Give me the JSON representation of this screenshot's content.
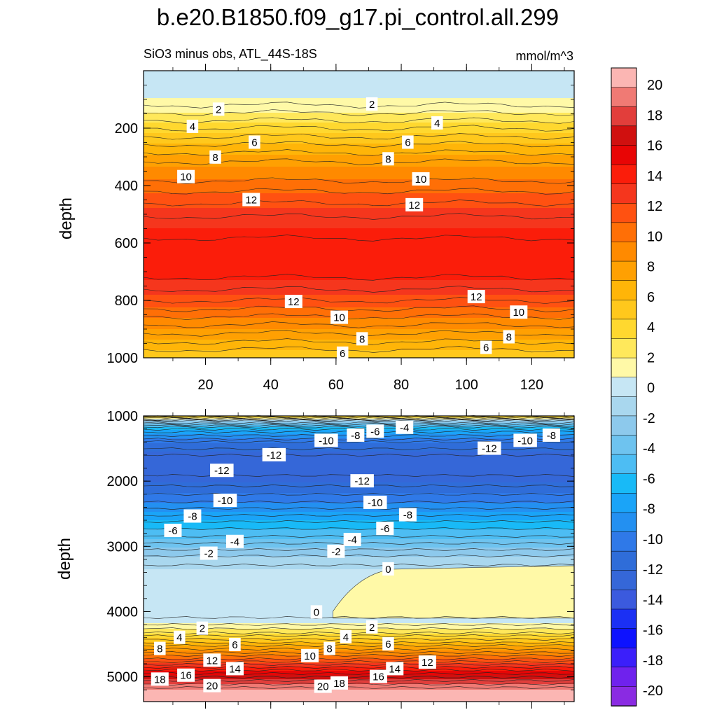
{
  "chart_data": {
    "type": "contour",
    "title": "b.e20.B1850.f09_g17.pi_control.all.299",
    "subtitle": "SiO3 minus obs, ATL_44S-18S",
    "units": "mmol/m^3",
    "colorbar": {
      "levels": [
        20,
        18,
        16,
        14,
        12,
        10,
        8,
        6,
        4,
        2,
        0,
        -2,
        -4,
        -6,
        -8,
        -10,
        -12,
        -14,
        -16,
        -18,
        -20
      ],
      "colors": [
        "#fbb6b3",
        "#f07a74",
        "#e23e3b",
        "#d0100f",
        "#e80505",
        "#fb1d0a",
        "#f5361d",
        "#ff5111",
        "#ff6f06",
        "#ff8a00",
        "#ffa002",
        "#ffb508",
        "#ffc81c",
        "#ffd82f",
        "#ffe85b",
        "#fff9a7",
        "#c6e6f4",
        "#a9d7ee",
        "#8dc9ec",
        "#6ec3ef",
        "#4dbdf3",
        "#18baf7",
        "#1aa4f8",
        "#2390f1",
        "#2f79e8",
        "#2f6dd9",
        "#3567d8",
        "#3b5ade",
        "#1b30f4",
        "#0d12ff",
        "#3b1ffa",
        "#6f22ed",
        "#8a2be2"
      ]
    },
    "panels": [
      {
        "name": "upper",
        "ylabel": "depth",
        "xlim": [
          1,
          133
        ],
        "ylim": [
          1000,
          0
        ],
        "xticks": [
          20,
          40,
          60,
          80,
          100,
          120
        ],
        "yticks": [
          200,
          400,
          600,
          800,
          1000
        ],
        "contour_labels": [
          {
            "text": "2",
            "x": 24,
            "depth": 135
          },
          {
            "text": "2",
            "x": 71,
            "depth": 117
          },
          {
            "text": "4",
            "x": 16,
            "depth": 195
          },
          {
            "text": "4",
            "x": 91,
            "depth": 183
          },
          {
            "text": "6",
            "x": 35,
            "depth": 250
          },
          {
            "text": "6",
            "x": 82,
            "depth": 250
          },
          {
            "text": "8",
            "x": 23,
            "depth": 302
          },
          {
            "text": "8",
            "x": 76,
            "depth": 308
          },
          {
            "text": "10",
            "x": 14,
            "depth": 370
          },
          {
            "text": "10",
            "x": 86,
            "depth": 378
          },
          {
            "text": "12",
            "x": 34,
            "depth": 450
          },
          {
            "text": "12",
            "x": 84,
            "depth": 468
          },
          {
            "text": "12",
            "x": 47,
            "depth": 805
          },
          {
            "text": "12",
            "x": 103,
            "depth": 788
          },
          {
            "text": "10",
            "x": 61,
            "depth": 860
          },
          {
            "text": "10",
            "x": 116,
            "depth": 842
          },
          {
            "text": "8",
            "x": 68,
            "depth": 935
          },
          {
            "text": "8",
            "x": 113,
            "depth": 928
          },
          {
            "text": "6",
            "x": 62,
            "depth": 985
          },
          {
            "text": "6",
            "x": 106,
            "depth": 965
          }
        ]
      },
      {
        "name": "lower",
        "ylabel": "depth",
        "xlim": [
          1,
          133
        ],
        "ylim": [
          5380,
          1000
        ],
        "yticks": [
          1000,
          2000,
          3000,
          4000,
          5000
        ],
        "contour_labels": [
          {
            "text": "-4",
            "x": 81,
            "depth": 1180
          },
          {
            "text": "-6",
            "x": 72,
            "depth": 1240
          },
          {
            "text": "-8",
            "x": 66,
            "depth": 1300
          },
          {
            "text": "-10",
            "x": 57,
            "depth": 1380
          },
          {
            "text": "-12",
            "x": 41,
            "depth": 1600
          },
          {
            "text": "-12",
            "x": 25,
            "depth": 1840
          },
          {
            "text": "-12",
            "x": 68,
            "depth": 2000
          },
          {
            "text": "-12",
            "x": 107,
            "depth": 1500
          },
          {
            "text": "-10",
            "x": 118,
            "depth": 1380
          },
          {
            "text": "-8",
            "x": 126,
            "depth": 1300
          },
          {
            "text": "-10",
            "x": 26,
            "depth": 2300
          },
          {
            "text": "-10",
            "x": 72,
            "depth": 2330
          },
          {
            "text": "-8",
            "x": 16,
            "depth": 2540
          },
          {
            "text": "-8",
            "x": 82,
            "depth": 2520
          },
          {
            "text": "-6",
            "x": 10,
            "depth": 2760
          },
          {
            "text": "-6",
            "x": 75,
            "depth": 2730
          },
          {
            "text": "-4",
            "x": 29,
            "depth": 2930
          },
          {
            "text": "-4",
            "x": 65,
            "depth": 2900
          },
          {
            "text": "-2",
            "x": 21,
            "depth": 3110
          },
          {
            "text": "-2",
            "x": 60,
            "depth": 3080
          },
          {
            "text": "0",
            "x": 76,
            "depth": 3350
          },
          {
            "text": "0",
            "x": 54,
            "depth": 4010
          },
          {
            "text": "2",
            "x": 19,
            "depth": 4260
          },
          {
            "text": "2",
            "x": 71,
            "depth": 4240
          },
          {
            "text": "4",
            "x": 12,
            "depth": 4400
          },
          {
            "text": "4",
            "x": 63,
            "depth": 4390
          },
          {
            "text": "6",
            "x": 29,
            "depth": 4510
          },
          {
            "text": "6",
            "x": 76,
            "depth": 4500
          },
          {
            "text": "8",
            "x": 6,
            "depth": 4570
          },
          {
            "text": "8",
            "x": 58,
            "depth": 4570
          },
          {
            "text": "10",
            "x": 52,
            "depth": 4680
          },
          {
            "text": "12",
            "x": 22,
            "depth": 4750
          },
          {
            "text": "12",
            "x": 88,
            "depth": 4780
          },
          {
            "text": "14",
            "x": 29,
            "depth": 4880
          },
          {
            "text": "14",
            "x": 78,
            "depth": 4880
          },
          {
            "text": "16",
            "x": 14,
            "depth": 4980
          },
          {
            "text": "16",
            "x": 73,
            "depth": 5000
          },
          {
            "text": "18",
            "x": 6,
            "depth": 5040
          },
          {
            "text": "18",
            "x": 61,
            "depth": 5100
          },
          {
            "text": "20",
            "x": 22,
            "depth": 5140
          },
          {
            "text": "20",
            "x": 56,
            "depth": 5150
          }
        ]
      }
    ]
  }
}
